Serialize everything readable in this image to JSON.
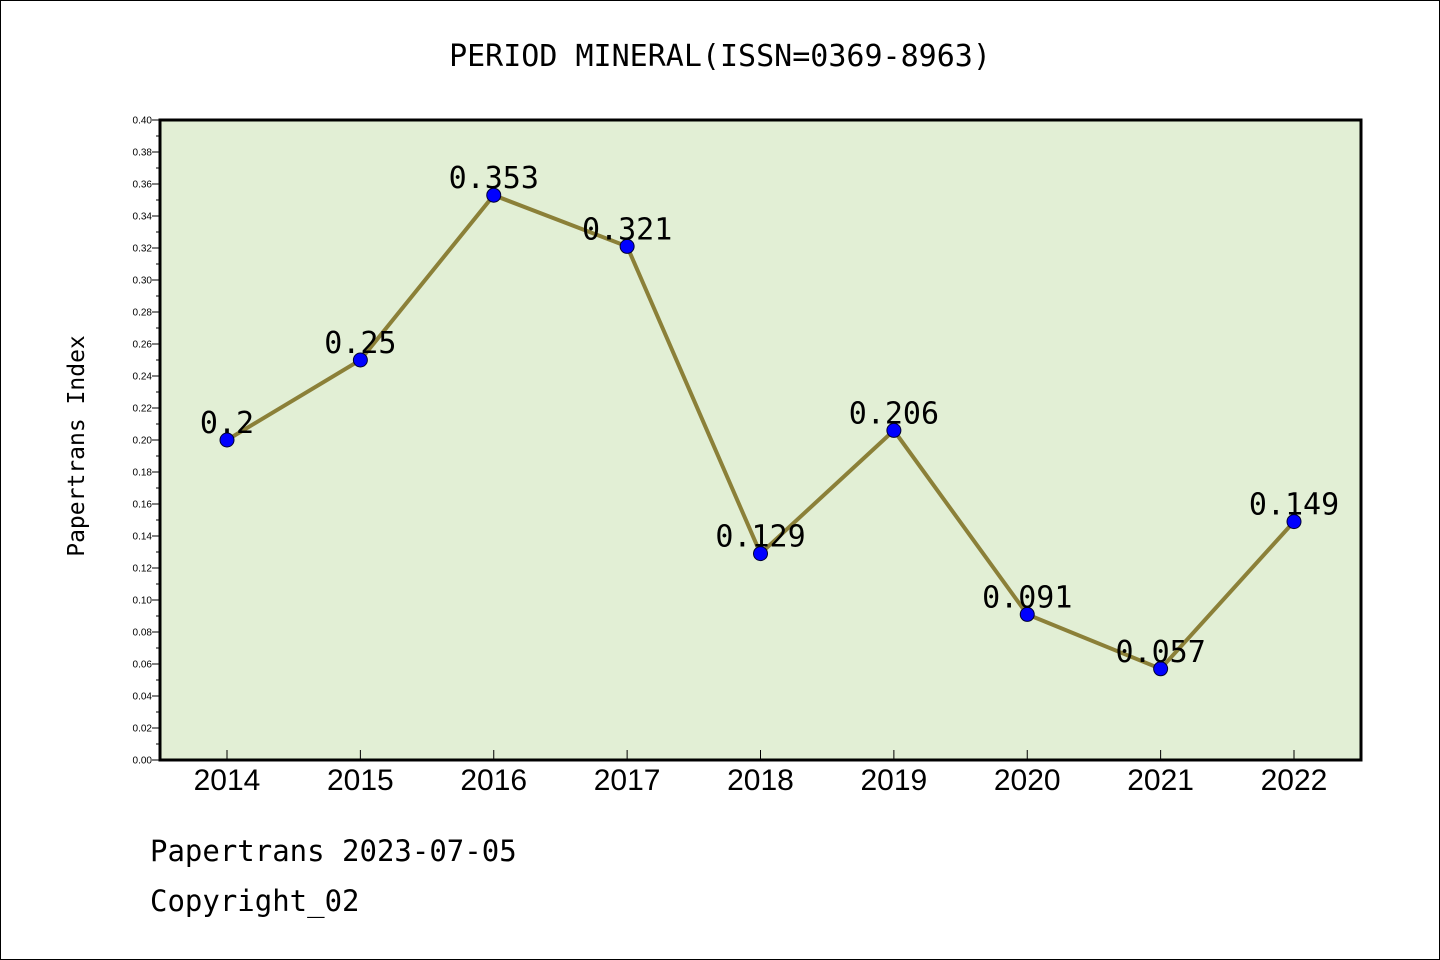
{
  "colors": {
    "plot_background": "#e2efd5",
    "line": "#8b8038",
    "marker": "#0000ff",
    "text": "#000000"
  },
  "chart_data": {
    "type": "line",
    "title": "PERIOD MINERAL(ISSN=0369-8963)",
    "xlabel": "",
    "ylabel": "Papertrans Index",
    "categories": [
      "2014",
      "2015",
      "2016",
      "2017",
      "2018",
      "2019",
      "2020",
      "2021",
      "2022"
    ],
    "series": [
      {
        "values": [
          0.2,
          0.25,
          0.353,
          0.321,
          0.129,
          0.206,
          0.091,
          0.057,
          0.149
        ],
        "labels": [
          "0.2",
          "0.25",
          "0.353",
          "0.321",
          "0.129",
          "0.206",
          "0.091",
          "0.057",
          "0.149"
        ]
      }
    ],
    "ylim": [
      0,
      0.4
    ],
    "yticks": [
      "0.00",
      "0.02",
      "0.04",
      "0.06",
      "0.08",
      "0.10",
      "0.12",
      "0.14",
      "0.16",
      "0.18",
      "0.20",
      "0.22",
      "0.24",
      "0.26",
      "0.28",
      "0.30",
      "0.32",
      "0.34",
      "0.36",
      "0.38",
      "0.40"
    ],
    "grid": false,
    "legend": "none"
  },
  "footer": {
    "date_text": "Papertrans 2023-07-05",
    "copyright_text": "Copyright_02"
  }
}
